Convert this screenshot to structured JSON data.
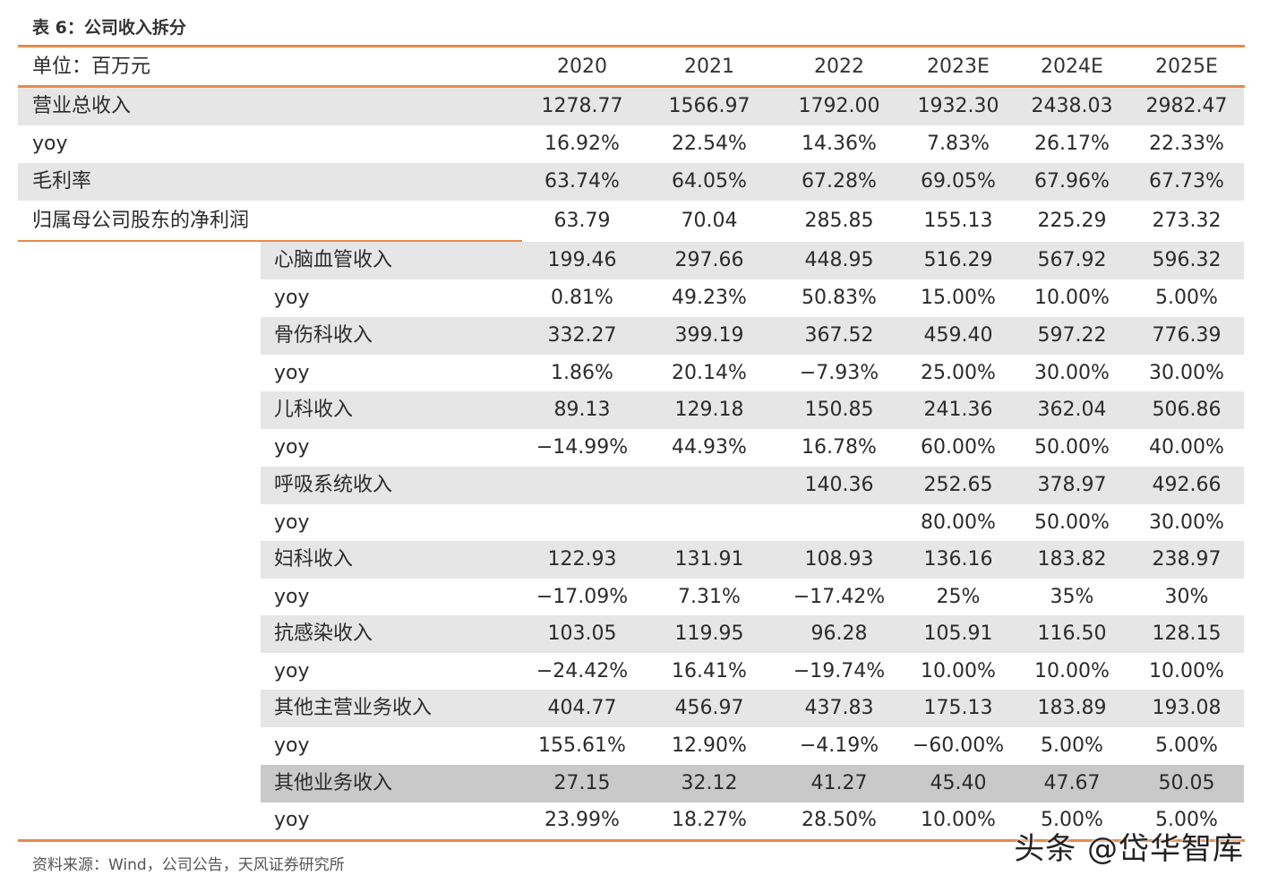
{
  "caption": "表 6：公司收入拆分",
  "header": {
    "unit": "单位：百万元",
    "years": [
      "2020",
      "2021",
      "2022",
      "2023E",
      "2024E",
      "2025E"
    ]
  },
  "rows": [
    {
      "label": "营业总收入",
      "values": [
        "1278.77",
        "1566.97",
        "1792.00",
        "1932.30",
        "2438.03",
        "2982.47"
      ]
    },
    {
      "label": "yoy",
      "values": [
        "16.92%",
        "22.54%",
        "14.36%",
        "7.83%",
        "26.17%",
        "22.33%"
      ]
    },
    {
      "label": "毛利率",
      "values": [
        "63.74%",
        "64.05%",
        "67.28%",
        "69.05%",
        "67.96%",
        "67.73%"
      ]
    },
    {
      "label": "归属母公司股东的净利润",
      "values": [
        "63.79",
        "70.04",
        "285.85",
        "155.13",
        "225.29",
        "273.32"
      ]
    },
    {
      "label": "心脑血管收入",
      "values": [
        "199.46",
        "297.66",
        "448.95",
        "516.29",
        "567.92",
        "596.32"
      ]
    },
    {
      "label": "yoy",
      "values": [
        "0.81%",
        "49.23%",
        "50.83%",
        "15.00%",
        "10.00%",
        "5.00%"
      ]
    },
    {
      "label": "骨伤科收入",
      "values": [
        "332.27",
        "399.19",
        "367.52",
        "459.40",
        "597.22",
        "776.39"
      ]
    },
    {
      "label": "yoy",
      "values": [
        "1.86%",
        "20.14%",
        "−7.93%",
        "25.00%",
        "30.00%",
        "30.00%"
      ]
    },
    {
      "label": "儿科收入",
      "values": [
        "89.13",
        "129.18",
        "150.85",
        "241.36",
        "362.04",
        "506.86"
      ]
    },
    {
      "label": "yoy",
      "values": [
        "−14.99%",
        "44.93%",
        "16.78%",
        "60.00%",
        "50.00%",
        "40.00%"
      ]
    },
    {
      "label": "呼吸系统收入",
      "values": [
        "",
        "",
        "140.36",
        "252.65",
        "378.97",
        "492.66"
      ]
    },
    {
      "label": "yoy",
      "values": [
        "",
        "",
        "",
        "80.00%",
        "50.00%",
        "30.00%"
      ]
    },
    {
      "label": "妇科收入",
      "values": [
        "122.93",
        "131.91",
        "108.93",
        "136.16",
        "183.82",
        "238.97"
      ]
    },
    {
      "label": "yoy",
      "values": [
        "−17.09%",
        "7.31%",
        "−17.42%",
        "25%",
        "35%",
        "30%"
      ]
    },
    {
      "label": "抗感染收入",
      "values": [
        "103.05",
        "119.95",
        "96.28",
        "105.91",
        "116.50",
        "128.15"
      ]
    },
    {
      "label": "yoy",
      "values": [
        "−24.42%",
        "16.41%",
        "−19.74%",
        "10.00%",
        "10.00%",
        "10.00%"
      ]
    },
    {
      "label": "其他主营业务收入",
      "values": [
        "404.77",
        "456.97",
        "437.83",
        "175.13",
        "183.89",
        "193.08"
      ]
    },
    {
      "label": "yoy",
      "values": [
        "155.61%",
        "12.90%",
        "−4.19%",
        "−60.00%",
        "5.00%",
        "5.00%"
      ]
    },
    {
      "label": "其他业务收入",
      "values": [
        "27.15",
        "32.12",
        "41.27",
        "45.40",
        "47.67",
        "50.05"
      ]
    },
    {
      "label": "yoy",
      "values": [
        "23.99%",
        "18.27%",
        "28.50%",
        "10.00%",
        "5.00%",
        "5.00%"
      ]
    }
  ],
  "source": "资料来源：Wind，公司公告，天风证券研究所",
  "watermark": "头条 @岱华智库",
  "colors": {
    "accent": "#e8894a",
    "stripe": "#e6e6e6",
    "stripe_dark": "#c9c9c9"
  }
}
